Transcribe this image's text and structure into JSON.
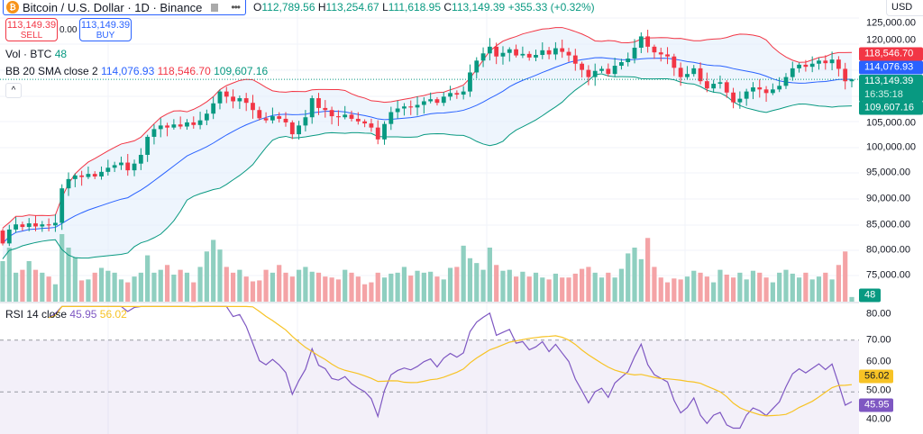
{
  "header": {
    "symbol_icon": "bitcoin-logo",
    "title": "Bitcoin / U.S. Dollar · 1D · Binance",
    "ohlc": {
      "o_label": "O",
      "o": "112,789.56",
      "h_label": "H",
      "h": "113,254.67",
      "l_label": "L",
      "l": "111,618.95",
      "c_label": "C",
      "c": "113,149.39",
      "change": "+355.33 (+0.32%)"
    },
    "sell": {
      "price": "113,149.39",
      "label": "SELL"
    },
    "spread": "0.00",
    "buy": {
      "price": "113,149.39",
      "label": "BUY"
    },
    "currency": "USD"
  },
  "indicators": {
    "volume": {
      "name": "Vol · BTC",
      "value": "48"
    },
    "bb": {
      "name": "BB 20 SMA close 2",
      "basis": "114,076.93",
      "upper": "118,546.70",
      "lower": "109,607.16"
    },
    "rsi": {
      "name": "RSI 14 close",
      "value": "45.95",
      "ma": "56.02"
    }
  },
  "axis": {
    "price_ticks": [
      "125,000.00",
      "120,000.00",
      "105,000.00",
      "100,000.00",
      "95,000.00",
      "90,000.00",
      "85,000.00",
      "80,000.00",
      "75,000.00"
    ],
    "rsi_ticks": [
      "80.00",
      "70.00",
      "60.00",
      "50.00",
      "40.00"
    ],
    "labels": {
      "upper": "118,546.70",
      "basis": "114,076.93",
      "last": "113,149.39",
      "countdown": "16:35:18",
      "lower": "109,607.16",
      "volume": "48",
      "rsi_ma": "56.02",
      "rsi": "45.95"
    }
  },
  "colors": {
    "up": "#089981",
    "down": "#f23645",
    "basis": "#2962ff",
    "upper": "#f23645",
    "lower": "#089981",
    "rsi": "#7e57c2",
    "rsi_ma": "#f7c325",
    "band_fill": "#e3eefc"
  },
  "chart_data": {
    "type": "candlestick",
    "price_range": [
      72000,
      125500
    ],
    "rsi_range": [
      35,
      84
    ],
    "last": {
      "open": 112789.56,
      "high": 113254.67,
      "low": 111618.95,
      "close": 113149.39
    },
    "closes": [
      81300,
      84000,
      85000,
      84500,
      85200,
      84600,
      85000,
      84800,
      85300,
      92000,
      93800,
      94500,
      94200,
      94800,
      94300,
      95200,
      96000,
      96500,
      97000,
      95500,
      96800,
      98500,
      102000,
      103500,
      104200,
      103800,
      104400,
      104000,
      104800,
      104300,
      105200,
      106500,
      108500,
      110800,
      109800,
      108900,
      109500,
      108600,
      107200,
      105600,
      105200,
      106000,
      105500,
      104800,
      102500,
      104200,
      105800,
      109500,
      107600,
      107200,
      106000,
      105800,
      106300,
      105500,
      105000,
      104600,
      103800,
      101500,
      104500,
      106800,
      107500,
      107900,
      107700,
      108200,
      108900,
      109300,
      108600,
      109800,
      110500,
      110200,
      110800,
      114500,
      116800,
      118200,
      119500,
      117600,
      118300,
      119000,
      117800,
      118100,
      117400,
      117900,
      118800,
      118000,
      119200,
      118500,
      117800,
      116200,
      115000,
      113600,
      114800,
      115200,
      114200,
      115800,
      116500,
      117200,
      119300,
      121500,
      119500,
      118400,
      118000,
      117600,
      115400,
      113600,
      114200,
      115300,
      112800,
      111400,
      112300,
      112600,
      110600,
      108700,
      109400,
      110800,
      111600,
      111200,
      110500,
      111200,
      111900,
      113600,
      115300,
      116000,
      115600,
      116200,
      116800,
      116300,
      117000,
      115200,
      112790,
      113149.39
    ],
    "volumes": [
      420,
      560,
      300,
      330,
      420,
      330,
      300,
      260,
      180,
      700,
      560,
      460,
      220,
      230,
      300,
      350,
      320,
      300,
      230,
      200,
      260,
      300,
      480,
      300,
      330,
      380,
      280,
      330,
      300,
      200,
      360,
      520,
      640,
      540,
      360,
      300,
      330,
      260,
      210,
      220,
      330,
      300,
      380,
      300,
      260,
      330,
      360,
      310,
      300,
      260,
      250,
      230,
      330,
      300,
      260,
      180,
      200,
      300,
      250,
      290,
      300,
      360,
      270,
      320,
      300,
      310,
      260,
      230,
      350,
      360,
      580,
      450,
      400,
      330,
      560,
      380,
      320,
      330,
      260,
      310,
      260,
      300,
      250,
      230,
      290,
      250,
      250,
      290,
      340,
      360,
      300,
      250,
      300,
      250,
      340,
      500,
      560,
      440,
      660,
      360,
      250,
      200,
      240,
      230,
      260,
      320,
      300,
      260,
      200,
      330,
      280,
      250,
      300,
      230,
      320,
      300,
      250,
      200,
      300,
      330,
      290,
      250,
      300,
      230,
      260,
      300,
      230,
      380,
      520,
      48
    ]
  }
}
